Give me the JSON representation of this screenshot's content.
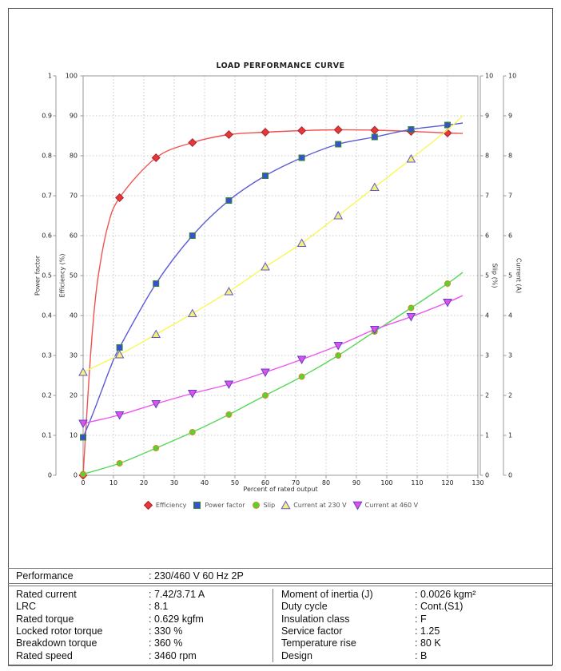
{
  "chart_data": {
    "type": "line",
    "title": "LOAD PERFORMANCE CURVE",
    "xlabel": "Percent of rated output",
    "x_range": [
      0,
      130
    ],
    "grid": "dotted",
    "legend_position": "bottom",
    "x_ticks": [
      "0",
      "10",
      "20",
      "30",
      "40",
      "50",
      "60",
      "70",
      "80",
      "90",
      "100",
      "110",
      "120",
      "130"
    ],
    "axes": {
      "power_factor": {
        "label": "Power factor",
        "side": "left",
        "ticks": [
          "0",
          "0.1",
          "0.2",
          "0.3",
          "0.4",
          "0.5",
          "0.6",
          "0.7",
          "0.8",
          "0.9",
          "1"
        ],
        "range": [
          0,
          1
        ]
      },
      "efficiency": {
        "label": "Efficiency (%)",
        "side": "left",
        "ticks": [
          "0",
          "10",
          "20",
          "30",
          "40",
          "50",
          "60",
          "70",
          "80",
          "90",
          "100"
        ],
        "range": [
          0,
          100
        ]
      },
      "slip": {
        "label": "Slip (%)",
        "side": "right",
        "ticks": [
          "0",
          "1",
          "2",
          "3",
          "4",
          "5",
          "6",
          "7",
          "8",
          "9",
          "10"
        ],
        "range": [
          0,
          10
        ]
      },
      "current": {
        "label": "Current (A)",
        "side": "right",
        "ticks": [
          "0",
          "1",
          "2",
          "3",
          "4",
          "5",
          "6",
          "7",
          "8",
          "9",
          "10"
        ],
        "range": [
          0,
          10
        ]
      }
    },
    "series": [
      {
        "name": "Efficiency",
        "axis": "efficiency",
        "marker": "diamond",
        "line_color": "#ef5350",
        "marker_fill": "#e53935",
        "marker_edge": "#aa2233",
        "markers": [
          [
            0,
            0
          ],
          [
            12,
            69.5
          ],
          [
            24,
            79.5
          ],
          [
            36,
            83.3
          ],
          [
            48,
            85.3
          ],
          [
            60,
            85.9
          ],
          [
            72,
            86.3
          ],
          [
            84,
            86.5
          ],
          [
            96,
            86.4
          ],
          [
            108,
            86.1
          ],
          [
            120,
            85.7
          ]
        ],
        "line": [
          [
            0,
            0
          ],
          [
            2,
            25
          ],
          [
            3.5,
            40
          ],
          [
            5,
            50
          ],
          [
            8,
            62
          ],
          [
            12,
            69.5
          ],
          [
            24,
            79.5
          ],
          [
            36,
            83.3
          ],
          [
            48,
            85.3
          ],
          [
            60,
            85.9
          ],
          [
            72,
            86.3
          ],
          [
            84,
            86.5
          ],
          [
            96,
            86.4
          ],
          [
            108,
            86.1
          ],
          [
            120,
            85.7
          ],
          [
            125,
            85.6
          ]
        ]
      },
      {
        "name": "Power factor",
        "axis": "power_factor",
        "marker": "square",
        "line_color": "#5b5bd6",
        "marker_fill": "#3c4fd0",
        "marker_edge": "#2e8b2e",
        "markers": [
          [
            0,
            0.095
          ],
          [
            12,
            0.32
          ],
          [
            24,
            0.48
          ],
          [
            36,
            0.6
          ],
          [
            48,
            0.688
          ],
          [
            60,
            0.75
          ],
          [
            72,
            0.795
          ],
          [
            84,
            0.829
          ],
          [
            96,
            0.847
          ],
          [
            108,
            0.866
          ],
          [
            120,
            0.877
          ]
        ],
        "line": [
          [
            0,
            0.095
          ],
          [
            3,
            0.15
          ],
          [
            6,
            0.21
          ],
          [
            9,
            0.27
          ],
          [
            12,
            0.32
          ],
          [
            24,
            0.48
          ],
          [
            36,
            0.6
          ],
          [
            48,
            0.688
          ],
          [
            60,
            0.75
          ],
          [
            72,
            0.795
          ],
          [
            84,
            0.829
          ],
          [
            96,
            0.847
          ],
          [
            108,
            0.866
          ],
          [
            120,
            0.877
          ],
          [
            125,
            0.882
          ]
        ]
      },
      {
        "name": "Slip",
        "axis": "slip",
        "marker": "circle",
        "line_color": "#58d858",
        "marker_fill": "#52d432",
        "marker_edge": "#dd8822",
        "markers": [
          [
            0,
            0.03
          ],
          [
            12,
            0.3
          ],
          [
            24,
            0.68
          ],
          [
            36,
            1.08
          ],
          [
            48,
            1.52
          ],
          [
            60,
            2.0
          ],
          [
            72,
            2.47
          ],
          [
            84,
            3.0
          ],
          [
            96,
            3.6
          ],
          [
            108,
            4.19
          ],
          [
            120,
            4.8
          ]
        ],
        "line": [
          [
            0,
            0.03
          ],
          [
            12,
            0.3
          ],
          [
            24,
            0.68
          ],
          [
            36,
            1.08
          ],
          [
            48,
            1.52
          ],
          [
            60,
            2.0
          ],
          [
            72,
            2.47
          ],
          [
            84,
            3.0
          ],
          [
            96,
            3.6
          ],
          [
            108,
            4.19
          ],
          [
            120,
            4.8
          ],
          [
            125,
            5.08
          ]
        ]
      },
      {
        "name": "Current at 230 V",
        "axis": "current",
        "marker": "triangle-up",
        "line_color": "#f7f75a",
        "marker_fill": "#f2f27a",
        "marker_edge": "#6655cc",
        "markers": [
          [
            0,
            2.58
          ],
          [
            12,
            3.02
          ],
          [
            24,
            3.53
          ],
          [
            36,
            4.05
          ],
          [
            48,
            4.6
          ],
          [
            60,
            5.22
          ],
          [
            72,
            5.81
          ],
          [
            84,
            6.5
          ],
          [
            96,
            7.21
          ],
          [
            108,
            7.92
          ]
        ],
        "line": [
          [
            0,
            2.58
          ],
          [
            12,
            3.02
          ],
          [
            24,
            3.53
          ],
          [
            36,
            4.05
          ],
          [
            48,
            4.6
          ],
          [
            60,
            5.22
          ],
          [
            72,
            5.81
          ],
          [
            84,
            6.5
          ],
          [
            96,
            7.21
          ],
          [
            108,
            7.92
          ],
          [
            120,
            8.65
          ],
          [
            125,
            9.0
          ]
        ]
      },
      {
        "name": "Current at 460 V",
        "axis": "current",
        "marker": "triangle-down",
        "line_color": "#ee55ee",
        "marker_fill": "#e44fe4",
        "marker_edge": "#5544cc",
        "markers": [
          [
            0,
            1.3
          ],
          [
            12,
            1.51
          ],
          [
            24,
            1.79
          ],
          [
            36,
            2.05
          ],
          [
            48,
            2.28
          ],
          [
            60,
            2.58
          ],
          [
            72,
            2.9
          ],
          [
            84,
            3.25
          ],
          [
            96,
            3.65
          ],
          [
            108,
            3.97
          ],
          [
            120,
            4.33
          ]
        ],
        "line": [
          [
            0,
            1.3
          ],
          [
            12,
            1.51
          ],
          [
            24,
            1.79
          ],
          [
            36,
            2.05
          ],
          [
            48,
            2.28
          ],
          [
            60,
            2.58
          ],
          [
            72,
            2.9
          ],
          [
            84,
            3.25
          ],
          [
            96,
            3.65
          ],
          [
            108,
            3.97
          ],
          [
            120,
            4.33
          ],
          [
            125,
            4.5
          ]
        ]
      }
    ]
  },
  "table": {
    "performance": {
      "label": "Performance",
      "value": ": 230/460 V 60 Hz 2P"
    },
    "left": [
      {
        "label": "Rated current",
        "value": ": 7.42/3.71 A"
      },
      {
        "label": "LRC",
        "value": ": 8.1"
      },
      {
        "label": "Rated torque",
        "value": ": 0.629 kgfm"
      },
      {
        "label": "Locked rotor torque",
        "value": ": 330 %"
      },
      {
        "label": "Breakdown torque",
        "value": ": 360 %"
      },
      {
        "label": "Rated speed",
        "value": ": 3460 rpm"
      }
    ],
    "right": [
      {
        "label": "Moment of inertia (J)",
        "value": ": 0.0026 kgm²"
      },
      {
        "label": "Duty cycle",
        "value": ": Cont.(S1)"
      },
      {
        "label": "Insulation class",
        "value": ": F"
      },
      {
        "label": "Service factor",
        "value": ": 1.25"
      },
      {
        "label": "Temperature rise",
        "value": ": 80 K"
      },
      {
        "label": "Design",
        "value": ": B"
      }
    ]
  }
}
